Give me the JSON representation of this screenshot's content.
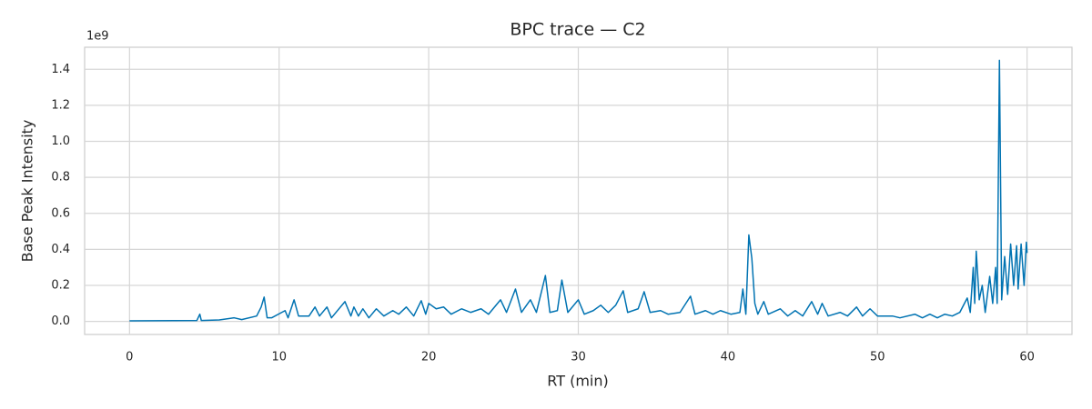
{
  "chart_data": {
    "type": "line",
    "title": "BPC trace — C2",
    "x_label": "RT (min)",
    "y_label": "Base Peak Intensity",
    "y_offset_label": "1e9",
    "xlim": [
      -3,
      63
    ],
    "ylim": [
      -0.0725,
      1.5225
    ],
    "xticks": [
      0,
      10,
      20,
      30,
      40,
      50,
      60
    ],
    "yticks": [
      {
        "value": 0,
        "label": "0.0"
      },
      0.2,
      0.4,
      0.6,
      0.8,
      {
        "value": 1,
        "label": "1.0"
      },
      1.2,
      1.4
    ],
    "grid": true,
    "color": "#0173b2",
    "x": [
      0,
      4.5,
      4.7,
      4.8,
      6.0,
      7.0,
      7.5,
      8.5,
      8.8,
      9.0,
      9.2,
      9.5,
      10.4,
      10.6,
      11.0,
      11.3,
      12.0,
      12.4,
      12.7,
      13.2,
      13.5,
      14.4,
      14.8,
      15.0,
      15.3,
      15.6,
      16.0,
      16.5,
      17.0,
      17.6,
      18.0,
      18.5,
      19.0,
      19.5,
      19.8,
      20.0,
      20.5,
      21.0,
      21.5,
      22.2,
      22.8,
      23.5,
      24.0,
      24.8,
      25.2,
      25.8,
      26.2,
      26.8,
      27.2,
      27.8,
      28.1,
      28.6,
      28.9,
      29.3,
      30.0,
      30.4,
      31.0,
      31.5,
      32.0,
      32.5,
      33.0,
      33.3,
      34.0,
      34.4,
      34.8,
      35.5,
      36.0,
      36.8,
      37.5,
      37.8,
      38.5,
      39.0,
      39.5,
      40.2,
      40.8,
      41.0,
      41.2,
      41.4,
      41.6,
      41.8,
      42.0,
      42.4,
      42.7,
      43.5,
      44.0,
      44.5,
      45.0,
      45.6,
      46.0,
      46.3,
      46.7,
      47.5,
      48.0,
      48.6,
      49.0,
      49.5,
      50.0,
      51.0,
      51.5,
      52.5,
      53.0,
      53.5,
      54.0,
      54.5,
      55.0,
      55.5,
      56.0,
      56.2,
      56.4,
      56.5,
      56.6,
      56.8,
      57.0,
      57.2,
      57.5,
      57.7,
      57.9,
      58.0,
      58.15,
      58.3,
      58.5,
      58.7,
      58.9,
      59.1,
      59.3,
      59.4,
      59.6,
      59.8,
      59.95,
      60.0
    ],
    "values": [
      0.003,
      0.005,
      0.04,
      0.005,
      0.008,
      0.02,
      0.01,
      0.03,
      0.08,
      0.135,
      0.02,
      0.02,
      0.06,
      0.02,
      0.12,
      0.03,
      0.03,
      0.08,
      0.03,
      0.08,
      0.02,
      0.11,
      0.03,
      0.08,
      0.03,
      0.07,
      0.02,
      0.07,
      0.03,
      0.06,
      0.04,
      0.08,
      0.03,
      0.115,
      0.04,
      0.1,
      0.07,
      0.08,
      0.04,
      0.07,
      0.05,
      0.07,
      0.04,
      0.12,
      0.05,
      0.18,
      0.05,
      0.12,
      0.05,
      0.255,
      0.05,
      0.06,
      0.23,
      0.05,
      0.12,
      0.04,
      0.06,
      0.09,
      0.05,
      0.09,
      0.17,
      0.05,
      0.07,
      0.165,
      0.05,
      0.06,
      0.04,
      0.05,
      0.14,
      0.04,
      0.06,
      0.04,
      0.06,
      0.04,
      0.05,
      0.18,
      0.04,
      0.48,
      0.35,
      0.1,
      0.04,
      0.11,
      0.04,
      0.07,
      0.03,
      0.06,
      0.03,
      0.11,
      0.04,
      0.1,
      0.03,
      0.05,
      0.03,
      0.08,
      0.03,
      0.07,
      0.03,
      0.03,
      0.02,
      0.04,
      0.02,
      0.04,
      0.02,
      0.04,
      0.03,
      0.05,
      0.13,
      0.05,
      0.3,
      0.1,
      0.39,
      0.12,
      0.2,
      0.05,
      0.25,
      0.1,
      0.3,
      0.1,
      1.45,
      0.12,
      0.36,
      0.15,
      0.43,
      0.2,
      0.42,
      0.18,
      0.43,
      0.2,
      0.44,
      0.38
    ]
  }
}
